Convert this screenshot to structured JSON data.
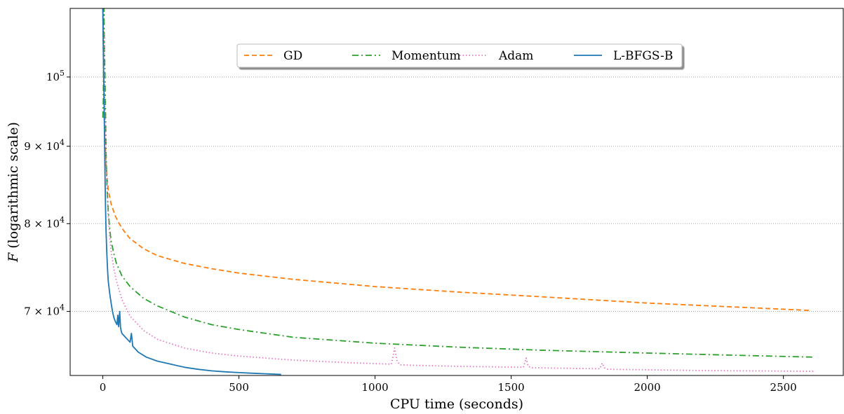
{
  "chart_data": {
    "type": "line",
    "title": "",
    "xlabel": "CPU time (seconds)",
    "ylabel": "F (logarithmic scale)",
    "ylabel_italic_part": "F",
    "ylabel_rest": " (logarithmic scale)",
    "y_scale": "log",
    "xlim": [
      -120,
      2720
    ],
    "ylim": [
      63500,
      111000
    ],
    "x_ticks": [
      0,
      500,
      1000,
      1500,
      2000,
      2500
    ],
    "x_tick_labels": [
      "0",
      "500",
      "1000",
      "1500",
      "2000",
      "2500"
    ],
    "y_ticks": [
      {
        "value": 100000,
        "mantissa": "",
        "base": "10",
        "exp": "5"
      },
      {
        "value": 90000,
        "mantissa": "9 × ",
        "base": "10",
        "exp": "4"
      },
      {
        "value": 80000,
        "mantissa": "8 × ",
        "base": "10",
        "exp": "4"
      },
      {
        "value": 70000,
        "mantissa": "7 × ",
        "base": "10",
        "exp": "4"
      }
    ],
    "grid": "horizontal dotted",
    "legend_placement": "top-center",
    "series": [
      {
        "name": "GD",
        "color": "#ff7f0e",
        "dash": "7,4",
        "x": [
          0,
          3,
          6,
          10,
          15,
          20,
          30,
          45,
          60,
          80,
          100,
          150,
          200,
          300,
          400,
          500,
          700,
          1000,
          1300,
          1600,
          2000,
          2300,
          2600
        ],
        "y": [
          111000,
          100000,
          93000,
          88800,
          86000,
          84200,
          82500,
          81000,
          80000,
          79000,
          78200,
          77000,
          76200,
          75300,
          74700,
          74200,
          73500,
          72700,
          72100,
          71600,
          70900,
          70500,
          70100
        ]
      },
      {
        "name": "Momentum",
        "color": "#2ca02c",
        "dash": "9,4,2,4",
        "x": [
          0,
          2,
          4,
          6,
          8,
          10,
          12,
          15,
          20,
          25,
          30,
          40,
          50,
          70,
          100,
          150,
          200,
          300,
          400,
          500,
          700,
          1000,
          1300,
          1600,
          2000,
          2300,
          2610
        ],
        "y": [
          94000,
          96500,
          111000,
          104000,
          100000,
          95000,
          89000,
          85000,
          81500,
          79500,
          78000,
          76500,
          75300,
          73900,
          72700,
          71400,
          70600,
          69400,
          68600,
          68100,
          67300,
          66700,
          66300,
          66000,
          65700,
          65500,
          65300
        ]
      },
      {
        "name": "Adam",
        "color": "#e377c2",
        "dash": "1.5,3",
        "x": [
          0,
          5,
          8,
          12,
          15,
          20,
          25,
          30,
          40,
          50,
          70,
          100,
          150,
          200,
          300,
          400,
          500,
          700,
          900,
          1060,
          1072,
          1080,
          1090,
          1100,
          1200,
          1400,
          1545,
          1555,
          1562,
          1575,
          1700,
          1825,
          1835,
          1842,
          1855,
          2000,
          2200,
          2400,
          2610
        ],
        "y": [
          111000,
          105000,
          95000,
          88000,
          84500,
          81000,
          78500,
          76800,
          74800,
          73300,
          71300,
          69500,
          68000,
          67100,
          66200,
          65700,
          65400,
          65000,
          64750,
          64600,
          66200,
          65000,
          64550,
          64520,
          64450,
          64350,
          64300,
          65200,
          64400,
          64250,
          64200,
          64150,
          64700,
          64250,
          64100,
          64050,
          63980,
          63940,
          63900
        ]
      },
      {
        "name": "L-BFGS-B",
        "color": "#1f77b4",
        "dash": "",
        "x": [
          0,
          2,
          4,
          6,
          8,
          10,
          12,
          14,
          16,
          18,
          20,
          25,
          30,
          35,
          40,
          45,
          52,
          55,
          58,
          62,
          65,
          68,
          70,
          80,
          90,
          100,
          105,
          110,
          130,
          160,
          200,
          250,
          300,
          350,
          400,
          450,
          500,
          550,
          600,
          655
        ],
        "y": [
          111000,
          104000,
          98000,
          92000,
          86000,
          82000,
          79000,
          77000,
          75500,
          74300,
          73300,
          72000,
          71000,
          70100,
          69400,
          69000,
          68600,
          69600,
          68400,
          70000,
          68300,
          67900,
          67700,
          67400,
          67100,
          66800,
          67700,
          66400,
          65800,
          65300,
          64900,
          64600,
          64300,
          64100,
          63950,
          63850,
          63780,
          63720,
          63660,
          63600
        ]
      }
    ]
  }
}
